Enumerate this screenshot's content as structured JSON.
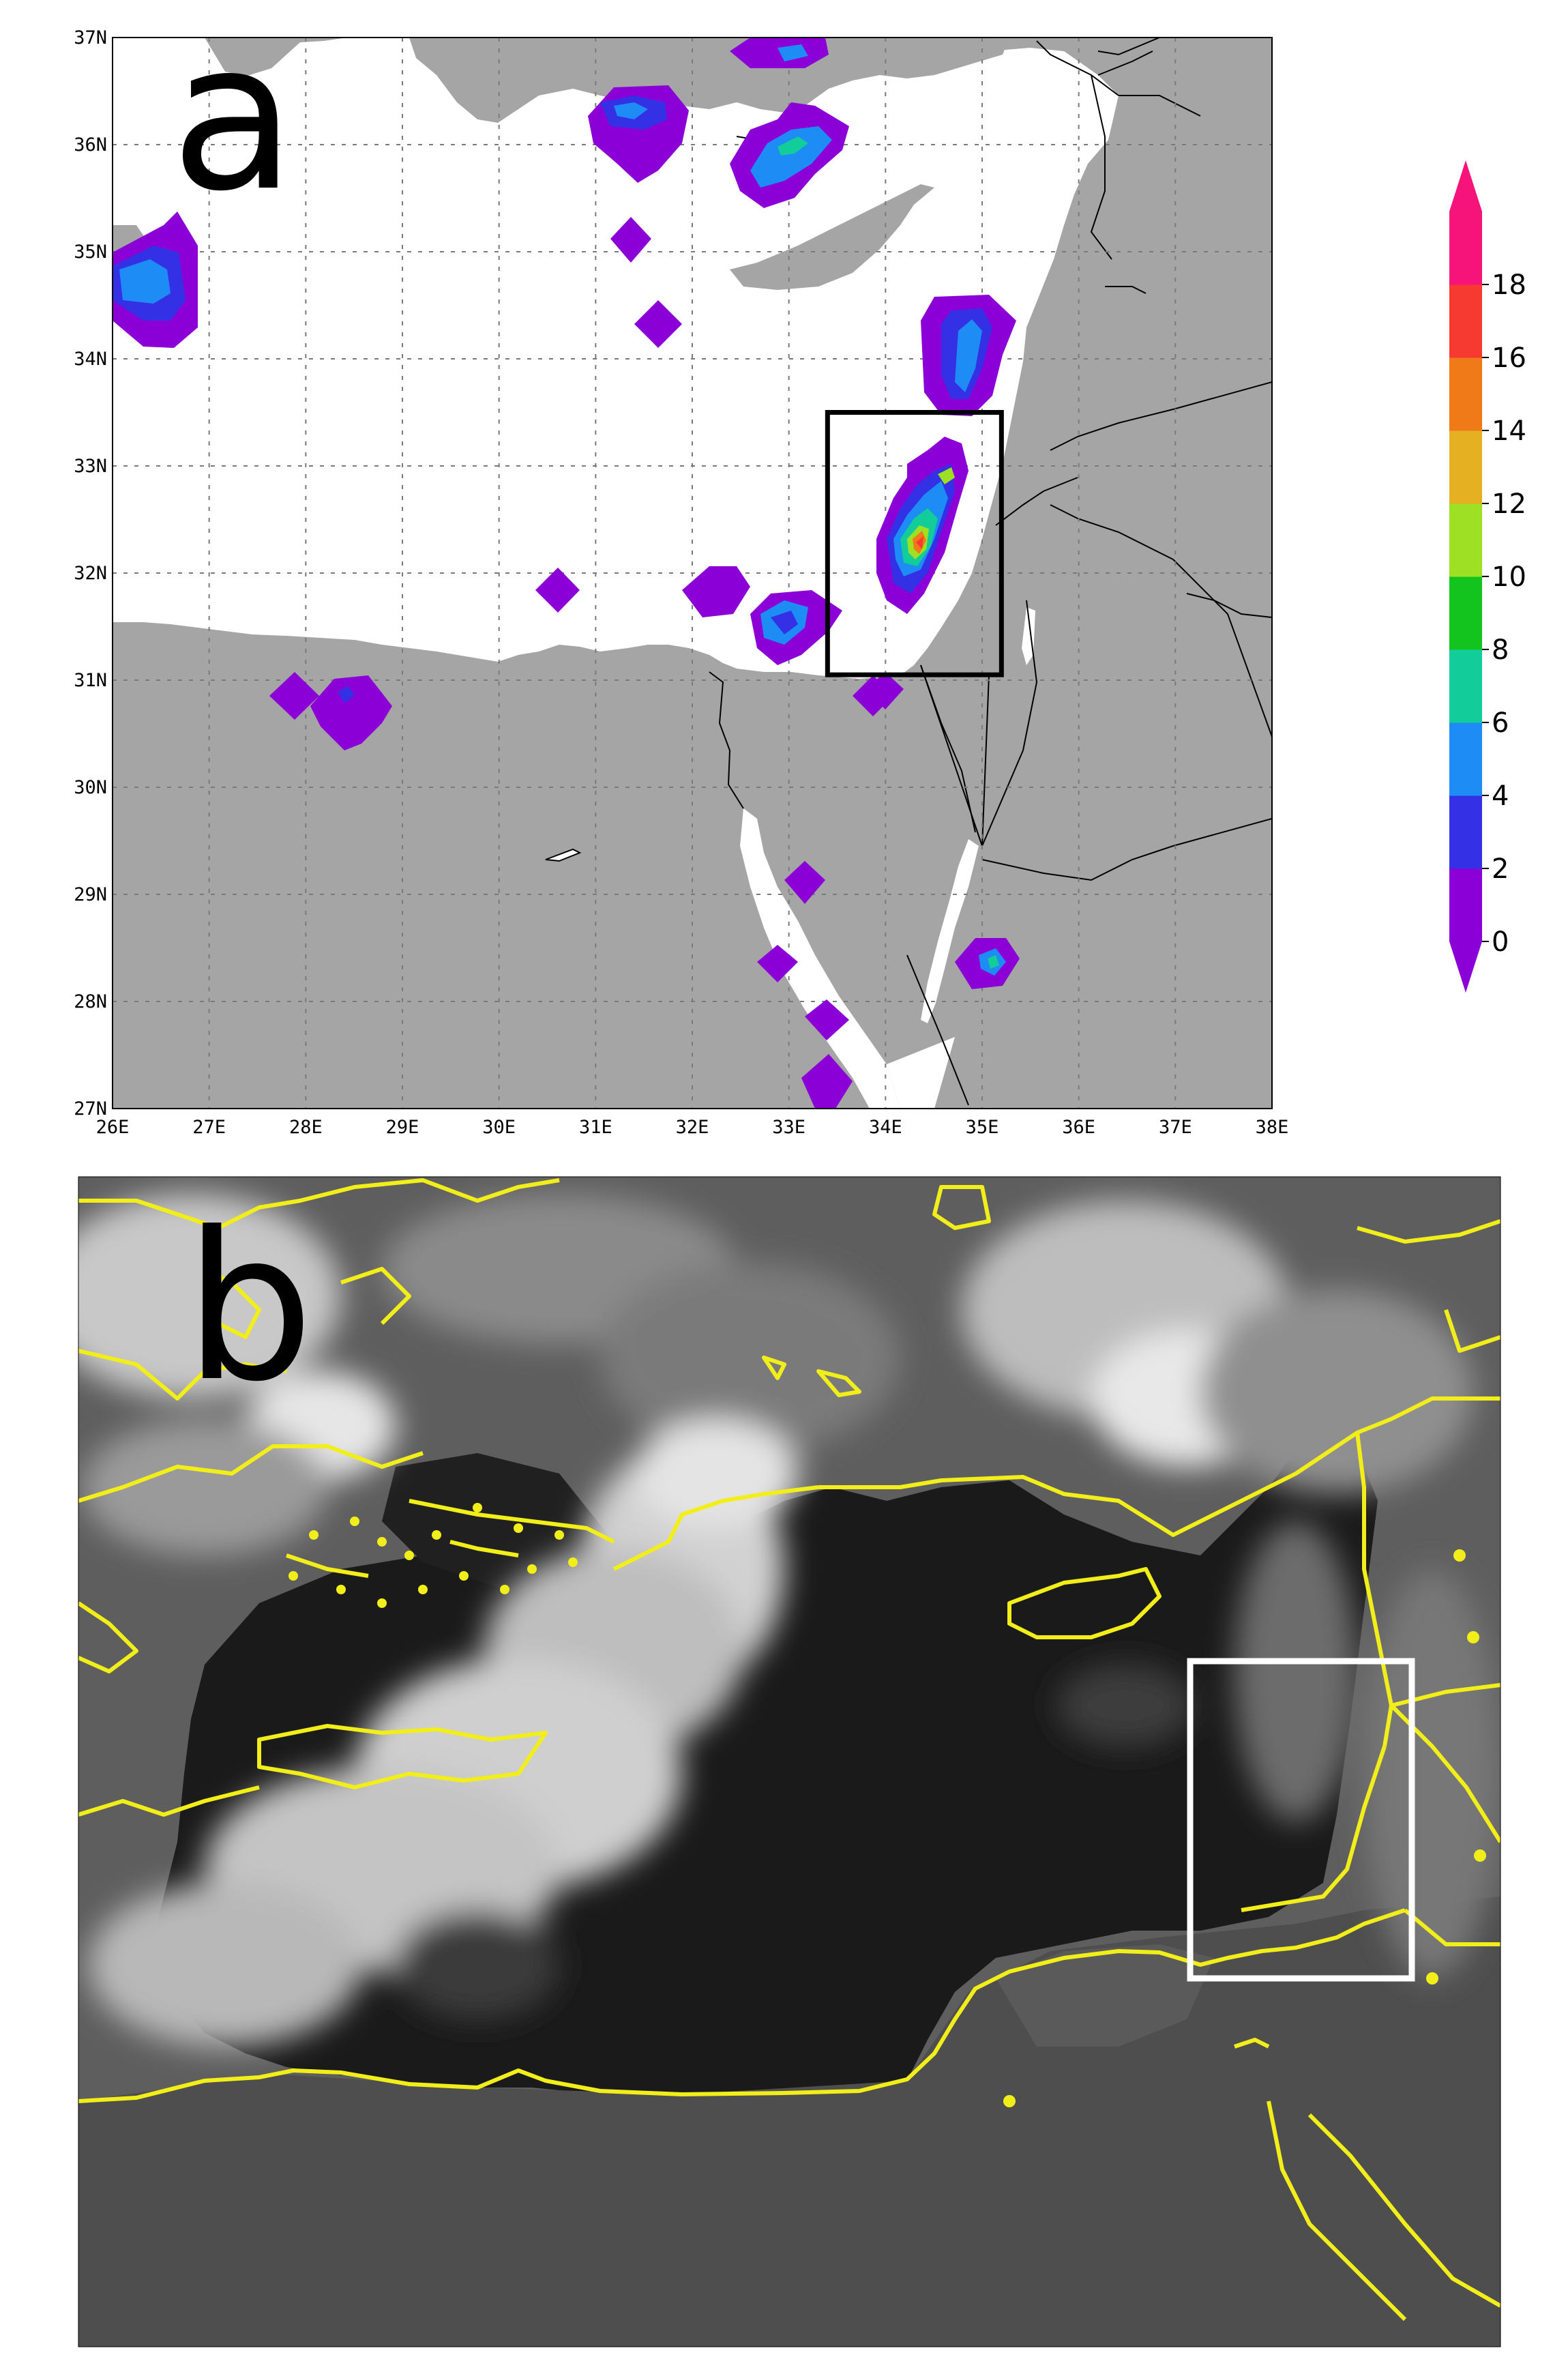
{
  "panel_a": {
    "letter": "a",
    "lat_labels": [
      "37N",
      "36N",
      "35N",
      "34N",
      "33N",
      "32N",
      "31N",
      "30N",
      "29N",
      "28N",
      "27N"
    ],
    "lon_labels": [
      "26E",
      "27E",
      "28E",
      "29E",
      "30E",
      "31E",
      "32E",
      "33E",
      "34E",
      "35E",
      "36E",
      "37E",
      "38E"
    ],
    "extent": {
      "lon": [
        26,
        38
      ],
      "lat": [
        27,
        37
      ]
    },
    "colors": {
      "land": "#a5a5a5",
      "sea": "#ffffff",
      "box": "#000000"
    },
    "highlight_box": {
      "lon": [
        33.4,
        35.2
      ],
      "lat": [
        31.05,
        33.5
      ]
    },
    "colorbar": {
      "labels": [
        "0",
        "2",
        "4",
        "6",
        "8",
        "10",
        "12",
        "14",
        "16",
        "18"
      ],
      "colors": [
        "#8a00d6",
        "#3430e6",
        "#1e8cf5",
        "#12cc9a",
        "#14c41e",
        "#9ee023",
        "#e6b023",
        "#f07a18",
        "#f63a32",
        "#f7147a"
      ]
    }
  },
  "panel_b": {
    "letter": "b",
    "colors": {
      "coast": "#f2ee1a",
      "box": "#ffffff"
    }
  }
}
